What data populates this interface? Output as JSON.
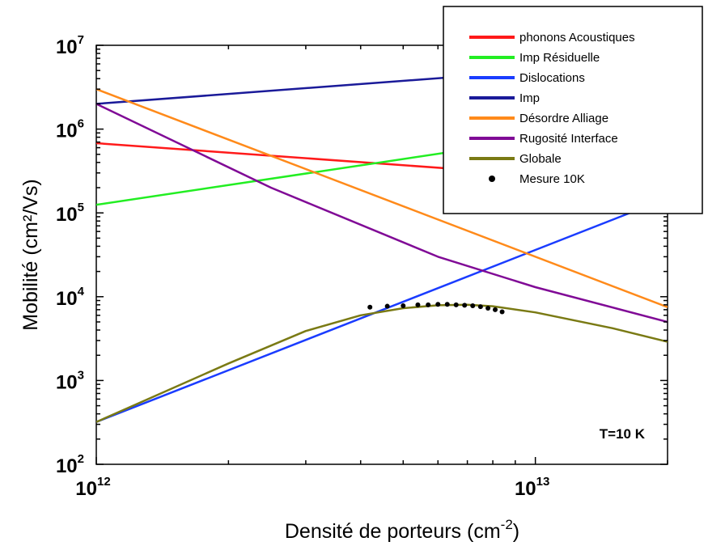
{
  "chart_data": {
    "type": "line",
    "x_scale": "log",
    "y_scale": "log",
    "xlim": [
      1000000000000.0,
      20000000000000.0
    ],
    "ylim": [
      100,
      10000000
    ],
    "xlabel": "Densité de porteurs (cm",
    "xlabel_exp": "-2",
    "xlabel_close": ")",
    "ylabel": "Mobilité (cm²/Vs)",
    "x_ticks": [
      {
        "base": "10",
        "exp": "12",
        "value": 1000000000000.0
      },
      {
        "base": "10",
        "exp": "13",
        "value": 10000000000000.0
      }
    ],
    "y_ticks": [
      {
        "base": "10",
        "exp": "2",
        "value": 100
      },
      {
        "base": "10",
        "exp": "3",
        "value": 1000
      },
      {
        "base": "10",
        "exp": "4",
        "value": 10000
      },
      {
        "base": "10",
        "exp": "5",
        "value": 100000
      },
      {
        "base": "10",
        "exp": "6",
        "value": 1000000
      },
      {
        "base": "10",
        "exp": "7",
        "value": 10000000
      }
    ],
    "annotation": "T=10 K",
    "legend_position": "top-right",
    "series": [
      {
        "name": "phonons Acoustiques",
        "color": "#ff1a1a",
        "x": [
          1000000000000.0,
          20000000000000.0
        ],
        "y": [
          680000,
          220000
        ]
      },
      {
        "name": "Imp Résiduelle",
        "color": "#22ee22",
        "x": [
          1000000000000.0,
          20000000000000.0
        ],
        "y": [
          125000,
          1300000
        ]
      },
      {
        "name": "Dislocations",
        "color": "#1a3cff",
        "x": [
          1000000000000.0,
          20000000000000.0
        ],
        "y": [
          320,
          150000
        ]
      },
      {
        "name": "Imp",
        "color": "#1a1a99",
        "x": [
          1000000000000.0,
          20000000000000.0
        ],
        "y": [
          2000000,
          6500000
        ]
      },
      {
        "name": "Désordre Alliage",
        "color": "#ff8a1a",
        "x": [
          1000000000000.0,
          20000000000000.0
        ],
        "y": [
          3000000,
          7500
        ]
      },
      {
        "name": "Rugosité Interface",
        "color": "#800a96",
        "x": [
          1000000000000.0,
          2500000000000.0,
          6000000000000.0,
          10000000000000.0,
          20000000000000.0
        ],
        "y": [
          2000000,
          200000,
          30000,
          13000,
          5000
        ]
      },
      {
        "name": "Globale",
        "color": "#7a7a14",
        "x": [
          1000000000000.0,
          2000000000000.0,
          3000000000000.0,
          4000000000000.0,
          5000000000000.0,
          6000000000000.0,
          7000000000000.0,
          8000000000000.0,
          10000000000000.0,
          15000000000000.0,
          20000000000000.0
        ],
        "y": [
          320,
          1600,
          3900,
          6000,
          7300,
          7900,
          8000,
          7700,
          6500,
          4200,
          2900
        ]
      }
    ],
    "scatter": {
      "name": "Mesure 10K",
      "color": "#000000",
      "x": [
        4200000000000.0,
        4600000000000.0,
        5000000000000.0,
        5400000000000.0,
        5700000000000.0,
        6000000000000.0,
        6300000000000.0,
        6600000000000.0,
        6900000000000.0,
        7200000000000.0,
        7500000000000.0,
        7800000000000.0,
        8100000000000.0,
        8400000000000.0
      ],
      "y": [
        7500,
        7700,
        7800,
        8000,
        8000,
        8100,
        8100,
        8000,
        7900,
        7800,
        7600,
        7300,
        7000,
        6600
      ]
    }
  }
}
